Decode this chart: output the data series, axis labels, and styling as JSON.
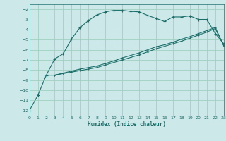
{
  "background_color": "#cce8e8",
  "grid_color": "#99ccbb",
  "line_color": "#1a6e6a",
  "xlabel": "Humidex (Indice chaleur)",
  "xlim": [
    0,
    23
  ],
  "ylim": [
    -12.5,
    -1.5
  ],
  "yticks": [
    -12,
    -11,
    -10,
    -9,
    -8,
    -7,
    -6,
    -5,
    -4,
    -3,
    -2
  ],
  "xticks": [
    0,
    1,
    2,
    3,
    4,
    5,
    6,
    7,
    8,
    9,
    10,
    11,
    12,
    13,
    14,
    15,
    16,
    17,
    18,
    19,
    20,
    21,
    22,
    23
  ],
  "line1_x": [
    0,
    1,
    2,
    3,
    4,
    5,
    6,
    7,
    8,
    9,
    10,
    11,
    12,
    13,
    14,
    15,
    16,
    17,
    18,
    19,
    20,
    21,
    22,
    23
  ],
  "line1_y": [
    -12.0,
    -10.5,
    -8.5,
    -6.9,
    -6.4,
    -4.9,
    -3.8,
    -3.1,
    -2.55,
    -2.25,
    -2.1,
    -2.1,
    -2.2,
    -2.25,
    -2.6,
    -2.9,
    -3.2,
    -2.75,
    -2.75,
    -2.65,
    -3.0,
    -3.0,
    -4.4,
    -5.4
  ],
  "line2_x": [
    2,
    3,
    4,
    5,
    6,
    7,
    8,
    9,
    10,
    11,
    12,
    13,
    14,
    15,
    16,
    17,
    18,
    19,
    20,
    21,
    22,
    23
  ],
  "line2_y": [
    -8.5,
    -8.5,
    -8.3,
    -8.1,
    -7.9,
    -7.75,
    -7.6,
    -7.35,
    -7.1,
    -6.8,
    -6.55,
    -6.3,
    -6.0,
    -5.7,
    -5.5,
    -5.25,
    -4.95,
    -4.7,
    -4.4,
    -4.1,
    -3.8,
    -5.6
  ],
  "line3_x": [
    2,
    3,
    4,
    5,
    6,
    7,
    8,
    9,
    10,
    11,
    12,
    13,
    14,
    15,
    16,
    17,
    18,
    19,
    20,
    21,
    22,
    23
  ],
  "line3_y": [
    -8.5,
    -8.5,
    -8.35,
    -8.2,
    -8.05,
    -7.9,
    -7.75,
    -7.5,
    -7.25,
    -7.0,
    -6.75,
    -6.5,
    -6.2,
    -5.9,
    -5.65,
    -5.4,
    -5.15,
    -4.85,
    -4.55,
    -4.25,
    -3.9,
    -5.6
  ]
}
